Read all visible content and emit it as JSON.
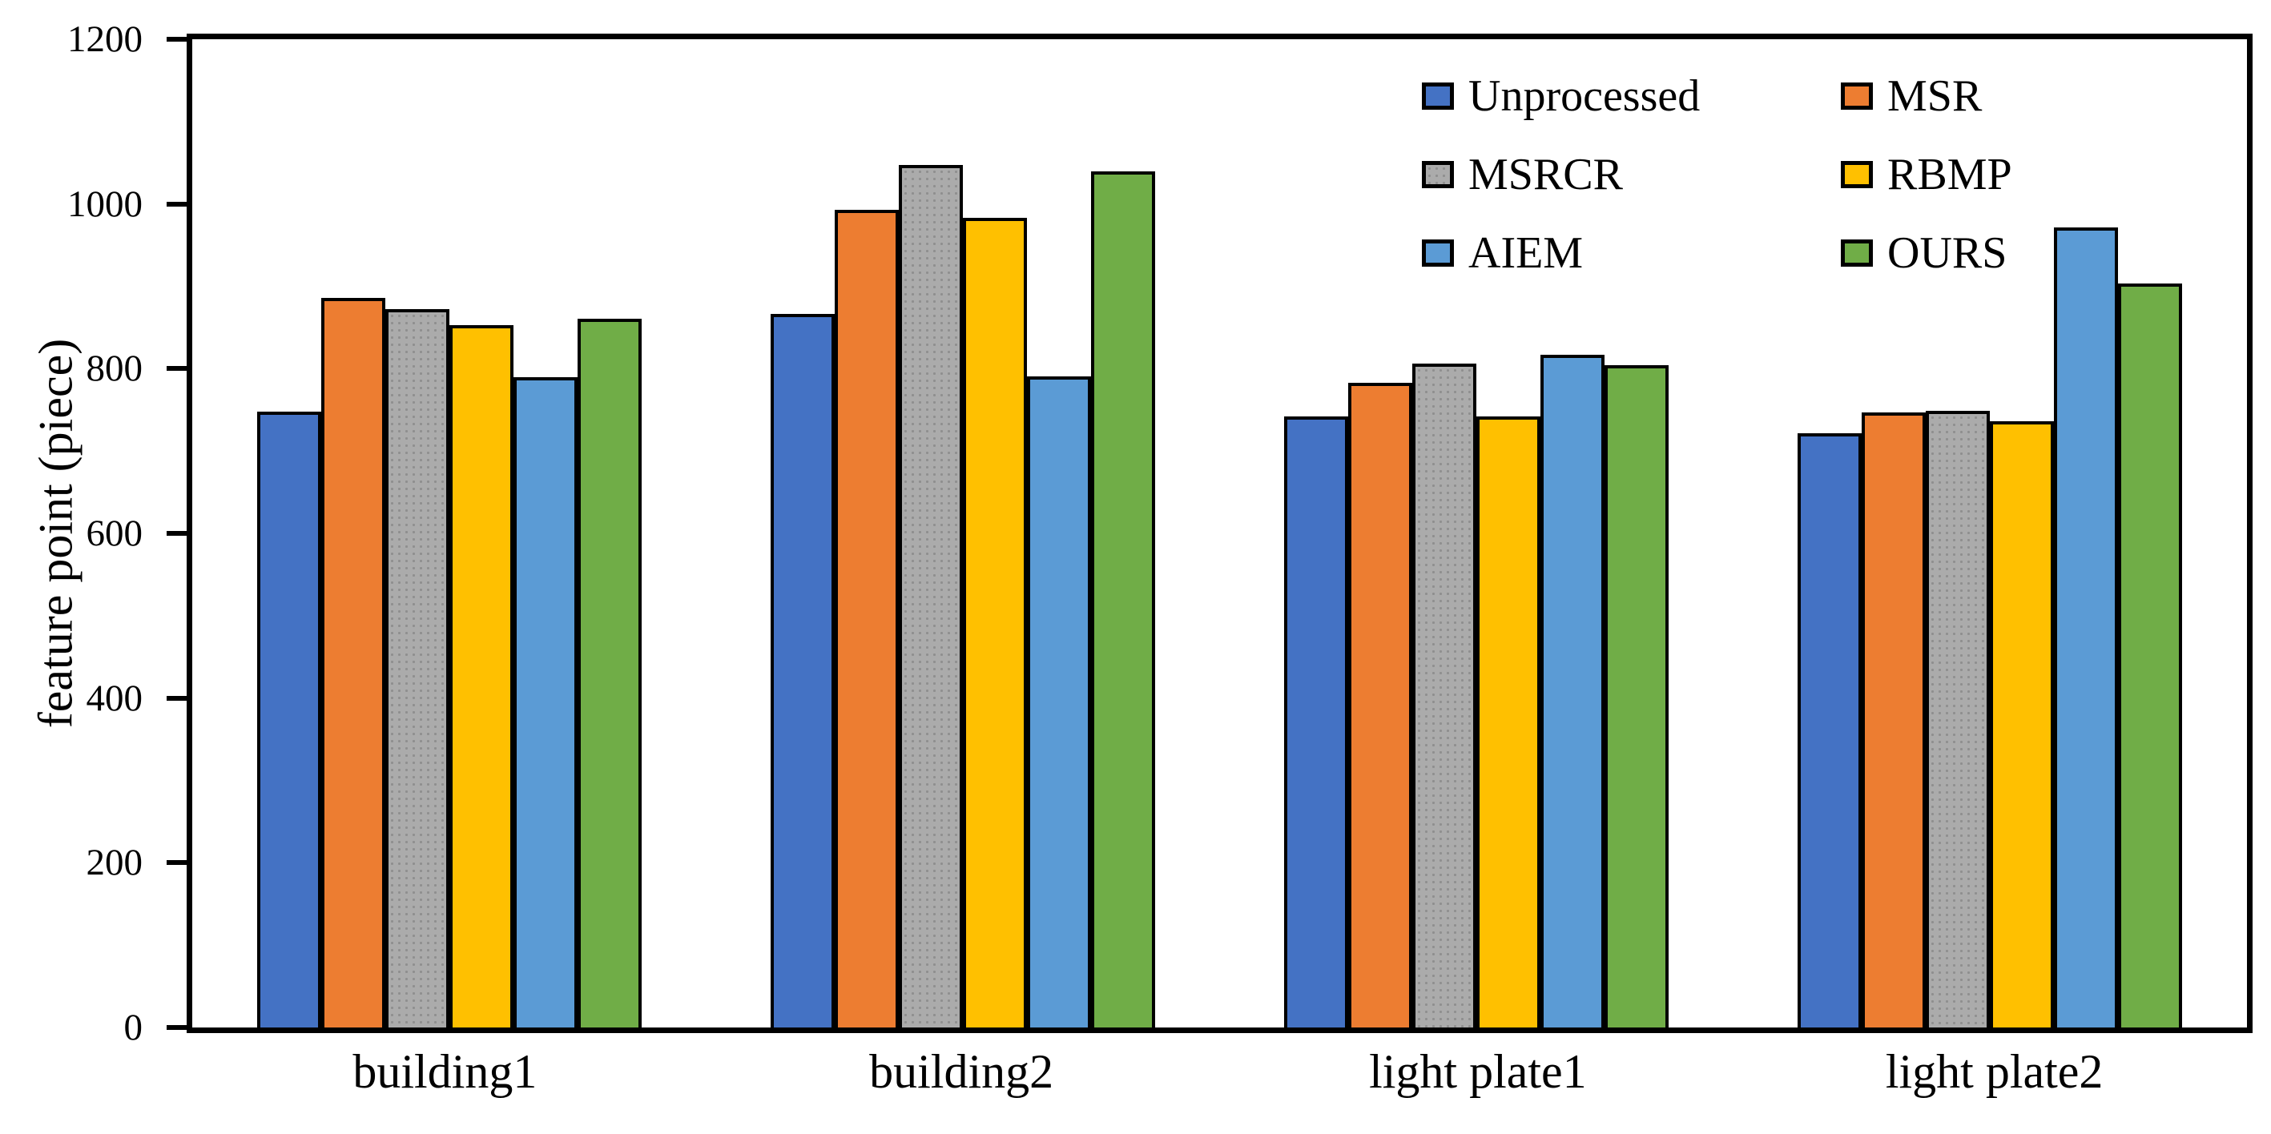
{
  "chart_data": {
    "type": "bar",
    "title": "",
    "xlabel": "",
    "ylabel": "feature point (piece)",
    "ylim": [
      0,
      1200
    ],
    "yticks": [
      0,
      200,
      400,
      600,
      800,
      1000,
      1200
    ],
    "grid": false,
    "legend_position": "inside-top-right",
    "legend_columns": [
      [
        0,
        2,
        4
      ],
      [
        1,
        3,
        5
      ]
    ],
    "bar_outline_color": "#000000",
    "axis_color": "#000000",
    "background_color": "#ffffff",
    "categories": [
      "building1",
      "building2",
      "light plate1",
      "light plate2"
    ],
    "series": [
      {
        "name": "Unprocessed",
        "color": "#4472C4",
        "pattern": "solid",
        "values": [
          748,
          866,
          742,
          722
        ]
      },
      {
        "name": "MSR",
        "color": "#ED7D31",
        "pattern": "solid",
        "values": [
          886,
          993,
          783,
          747
        ]
      },
      {
        "name": "MSRCR",
        "color": "#ABABAB",
        "pattern": "dotted",
        "values": [
          872,
          1047,
          806,
          749
        ]
      },
      {
        "name": "RBMP",
        "color": "#FFC000",
        "pattern": "solid",
        "values": [
          853,
          983,
          742,
          736
        ]
      },
      {
        "name": "AIEM",
        "color": "#5B9BD5",
        "pattern": "solid",
        "values": [
          790,
          791,
          817,
          971
        ]
      },
      {
        "name": "OURS",
        "color": "#70AD47",
        "pattern": "solid",
        "values": [
          861,
          1040,
          804,
          903
        ]
      }
    ]
  }
}
